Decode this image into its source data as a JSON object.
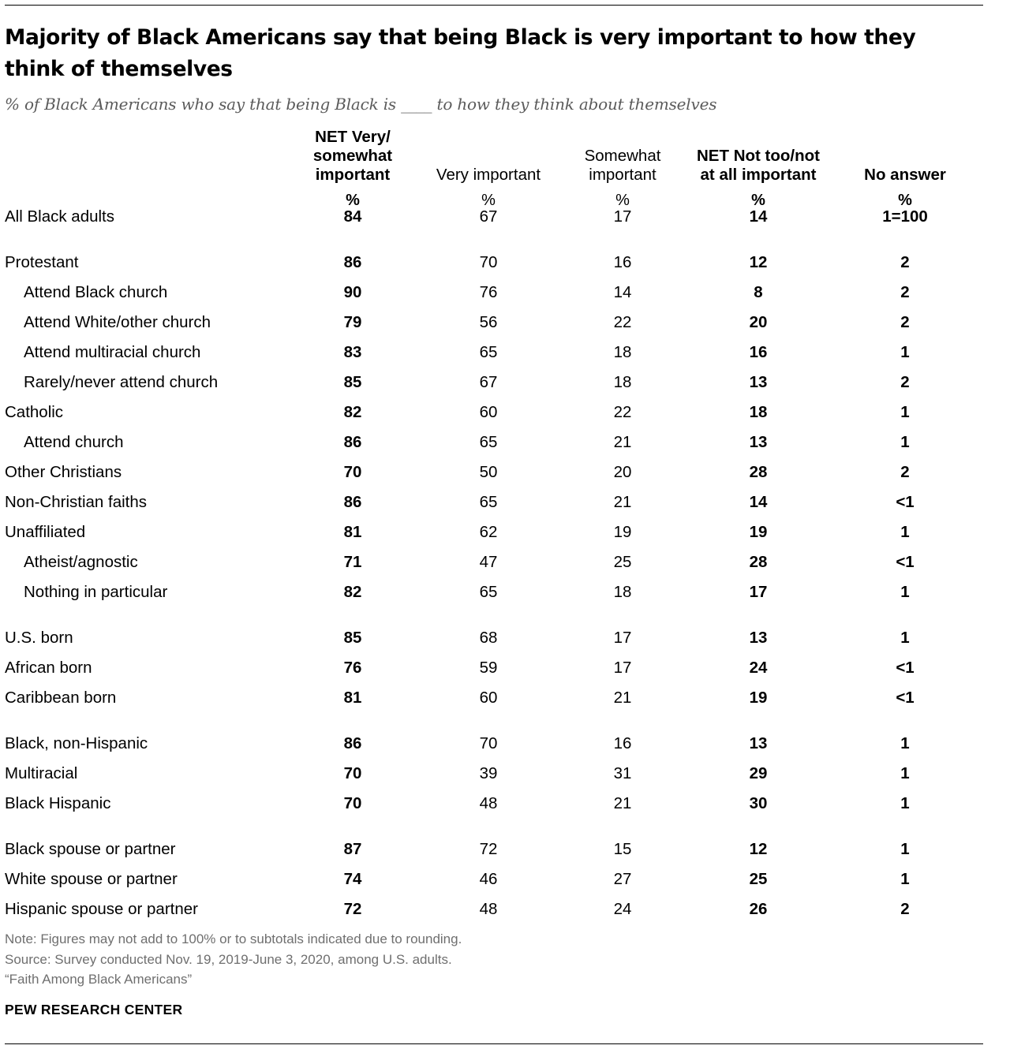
{
  "title": "Majority of Black Americans say that being Black is very important to how they think of themselves",
  "subtitle": "% of Black Americans who say that being Black is ____ to how they think about themselves",
  "chart_data": {
    "type": "table",
    "columns": [
      {
        "label": "NET Very/ somewhat important",
        "lines": [
          "NET Very/",
          "somewhat",
          "important"
        ],
        "unit": "%",
        "bold": true
      },
      {
        "label": "Very important",
        "lines": [
          "Very important"
        ],
        "unit": "%",
        "bold": false
      },
      {
        "label": "Somewhat important",
        "lines": [
          "Somewhat",
          "important"
        ],
        "unit": "%",
        "bold": false
      },
      {
        "label": "NET Not too/not at all important",
        "lines": [
          "NET Not too/not",
          "at all important"
        ],
        "unit": "%",
        "bold": true
      },
      {
        "label": "No answer",
        "lines": [
          "No answer"
        ],
        "unit": "%",
        "bold": true
      }
    ],
    "rows": [
      {
        "label": "All Black adults",
        "indent": false,
        "values": [
          "84",
          "67",
          "17",
          "14",
          "1=100"
        ]
      },
      {
        "label": "Protestant",
        "indent": false,
        "values": [
          "86",
          "70",
          "16",
          "12",
          "2"
        ]
      },
      {
        "label": "Attend Black church",
        "indent": true,
        "values": [
          "90",
          "76",
          "14",
          "8",
          "2"
        ]
      },
      {
        "label": "Attend White/other church",
        "indent": true,
        "values": [
          "79",
          "56",
          "22",
          "20",
          "2"
        ]
      },
      {
        "label": "Attend multiracial church",
        "indent": true,
        "values": [
          "83",
          "65",
          "18",
          "16",
          "1"
        ]
      },
      {
        "label": "Rarely/never attend church",
        "indent": true,
        "values": [
          "85",
          "67",
          "18",
          "13",
          "2"
        ]
      },
      {
        "label": "Catholic",
        "indent": false,
        "values": [
          "82",
          "60",
          "22",
          "18",
          "1"
        ]
      },
      {
        "label": "Attend church",
        "indent": true,
        "values": [
          "86",
          "65",
          "21",
          "13",
          "1"
        ]
      },
      {
        "label": "Other Christians",
        "indent": false,
        "values": [
          "70",
          "50",
          "20",
          "28",
          "2"
        ]
      },
      {
        "label": "Non-Christian faiths",
        "indent": false,
        "values": [
          "86",
          "65",
          "21",
          "14",
          "<1"
        ]
      },
      {
        "label": "Unaffiliated",
        "indent": false,
        "values": [
          "81",
          "62",
          "19",
          "19",
          "1"
        ]
      },
      {
        "label": "Atheist/agnostic",
        "indent": true,
        "values": [
          "71",
          "47",
          "25",
          "28",
          "<1"
        ]
      },
      {
        "label": "Nothing in particular",
        "indent": true,
        "values": [
          "82",
          "65",
          "18",
          "17",
          "1"
        ]
      },
      {
        "label": "U.S. born",
        "indent": false,
        "values": [
          "85",
          "68",
          "17",
          "13",
          "1"
        ]
      },
      {
        "label": "African born",
        "indent": false,
        "values": [
          "76",
          "59",
          "17",
          "24",
          "<1"
        ]
      },
      {
        "label": "Caribbean born",
        "indent": false,
        "values": [
          "81",
          "60",
          "21",
          "19",
          "<1"
        ]
      },
      {
        "label": "Black, non-Hispanic",
        "indent": false,
        "values": [
          "86",
          "70",
          "16",
          "13",
          "1"
        ]
      },
      {
        "label": "Multiracial",
        "indent": false,
        "values": [
          "70",
          "39",
          "31",
          "29",
          "1"
        ]
      },
      {
        "label": "Black Hispanic",
        "indent": false,
        "values": [
          "70",
          "48",
          "21",
          "30",
          "1"
        ]
      },
      {
        "label": "Black spouse or partner",
        "indent": false,
        "values": [
          "87",
          "72",
          "15",
          "12",
          "1"
        ]
      },
      {
        "label": "White spouse or partner",
        "indent": false,
        "values": [
          "74",
          "46",
          "27",
          "25",
          "1"
        ]
      },
      {
        "label": "Hispanic spouse or partner",
        "indent": false,
        "values": [
          "72",
          "48",
          "24",
          "26",
          "2"
        ]
      }
    ]
  },
  "footer": {
    "note": "Note: Figures may not add to 100% or to subtotals indicated due to rounding.",
    "source": "Source: Survey conducted Nov. 19, 2019-June 3, 2020, among U.S. adults.",
    "report": "“Faith Among Black Americans”",
    "brand": "PEW RESEARCH CENTER"
  }
}
